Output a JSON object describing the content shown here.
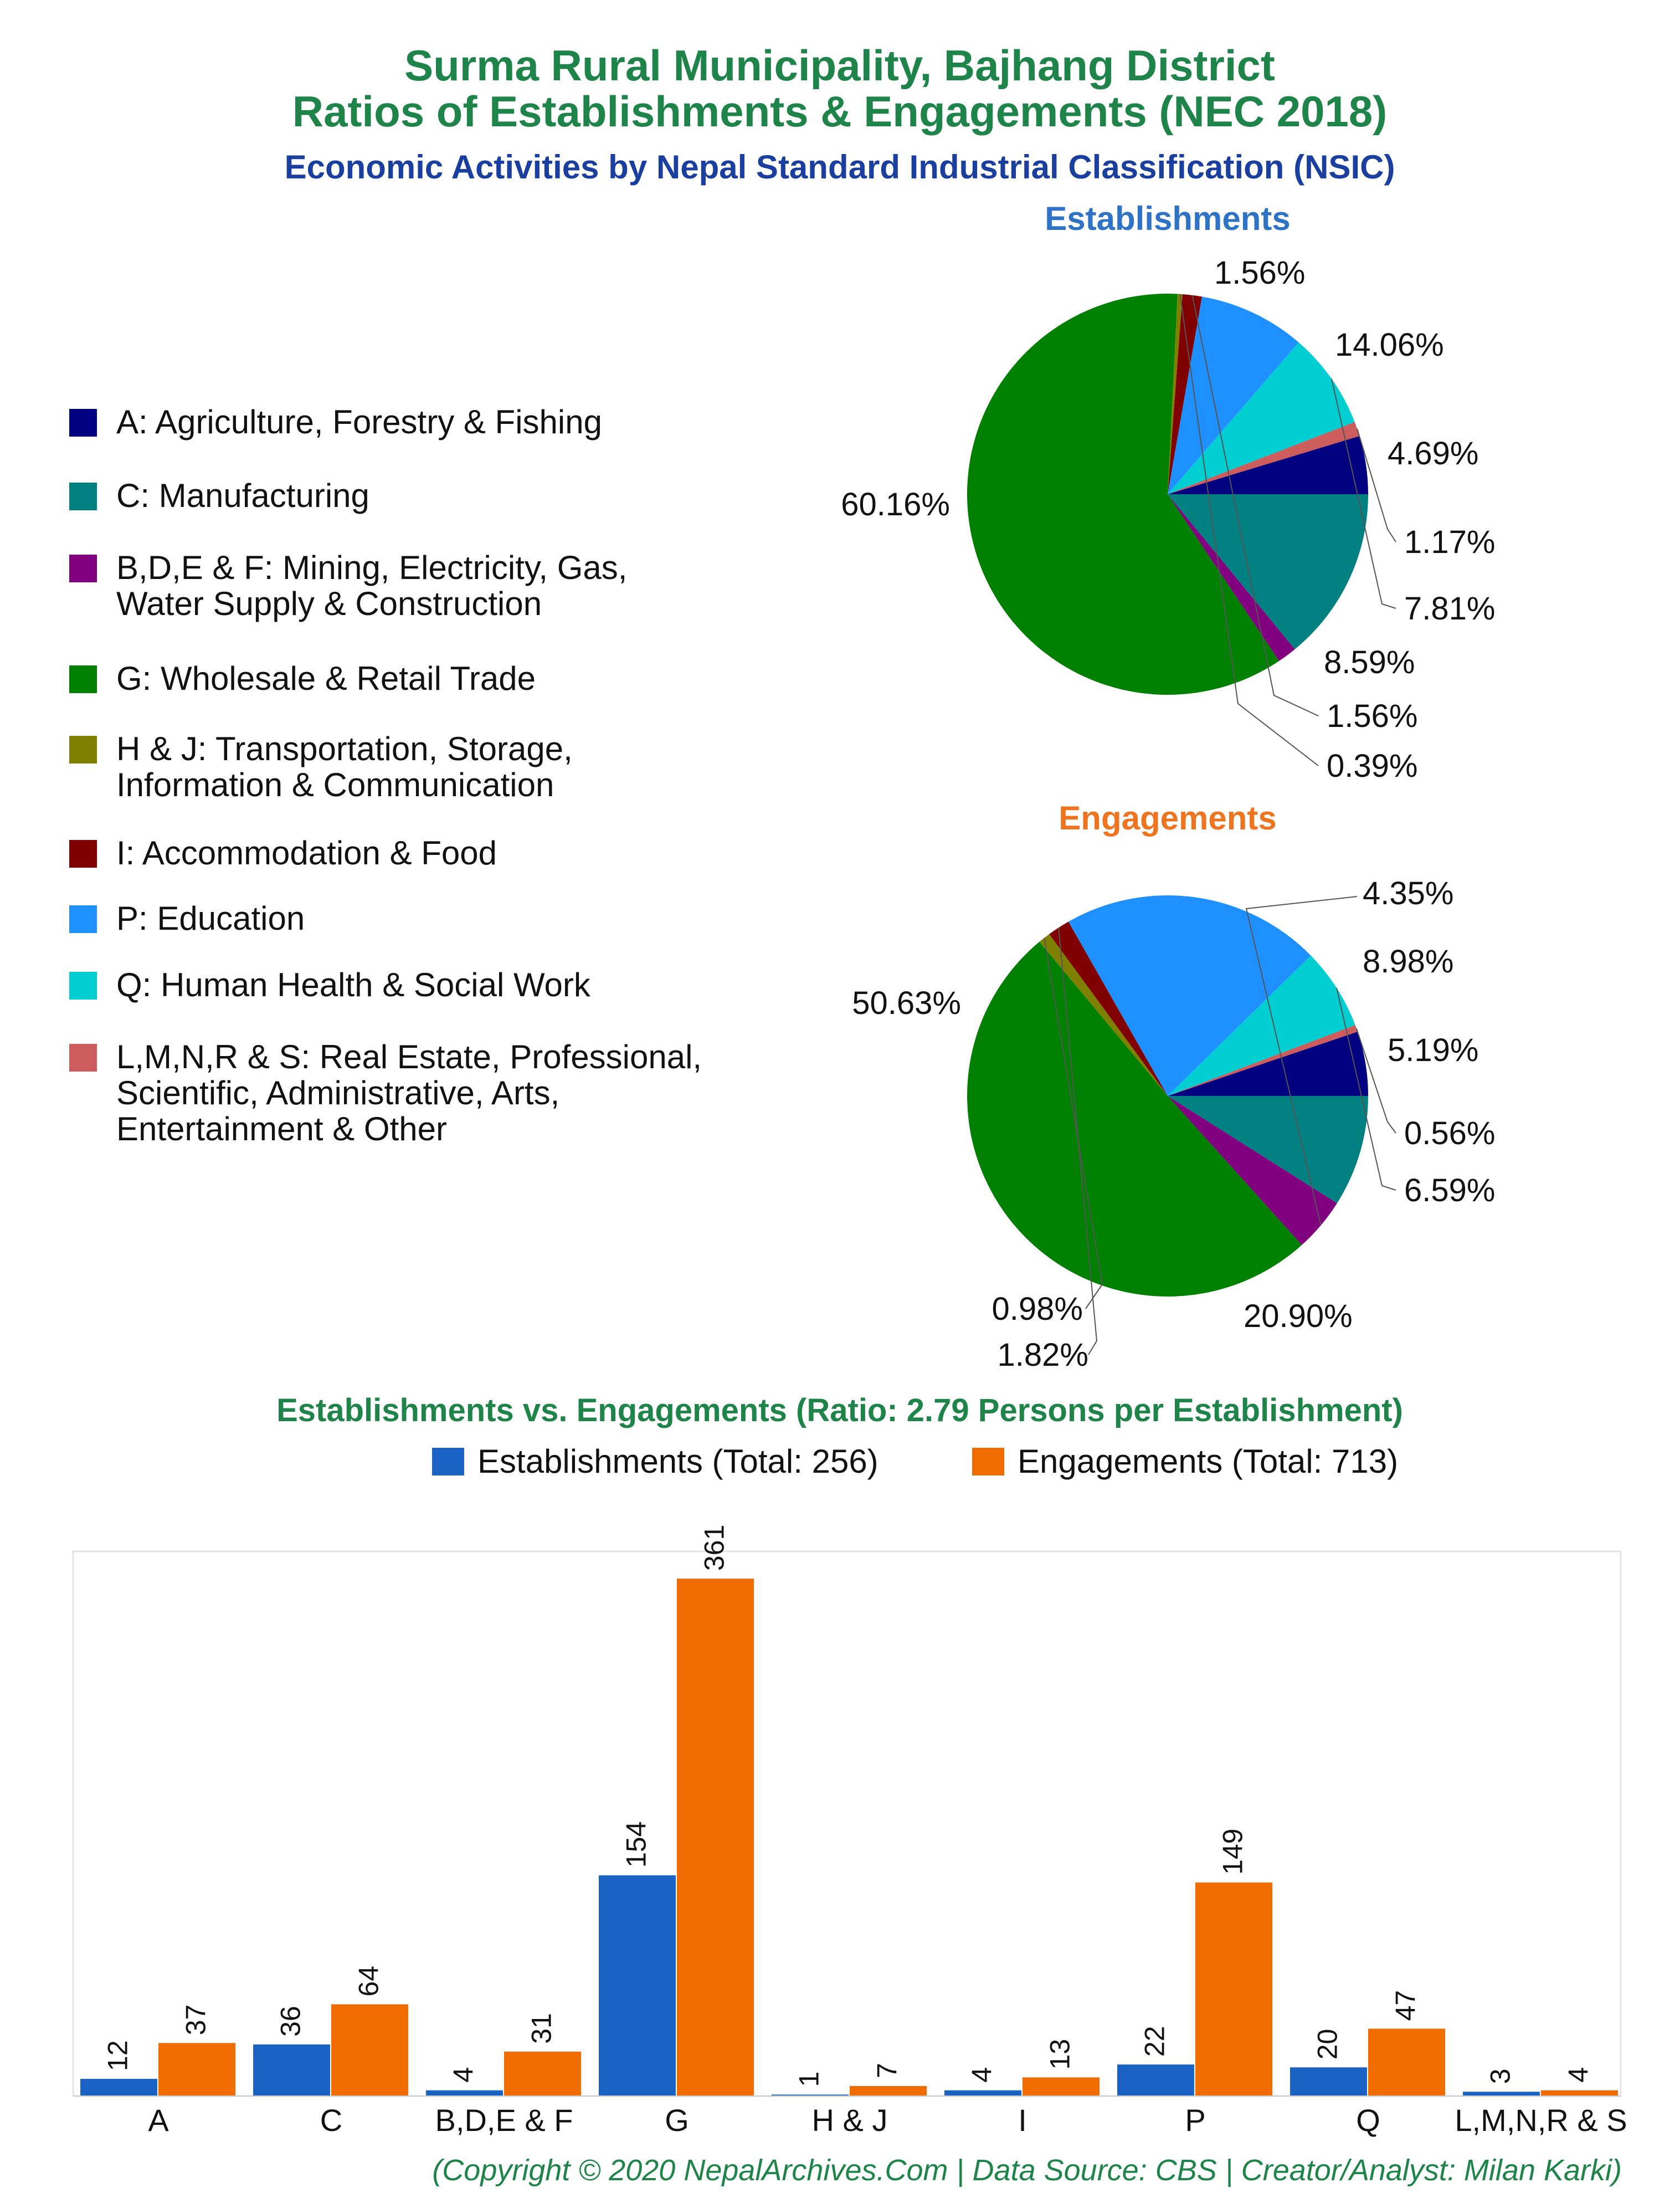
{
  "header": {
    "title_line1": "Surma Rural Municipality, Bajhang District",
    "title_line2": "Ratios of Establishments & Engagements (NEC 2018)",
    "subtitle": "Economic Activities by Nepal Standard Industrial Classification (NSIC)"
  },
  "legend": [
    {
      "lines": [
        "A: Agriculture, Forestry & Fishing"
      ],
      "color": "#000080"
    },
    {
      "lines": [
        "C: Manufacturing"
      ],
      "color": "#008080"
    },
    {
      "lines": [
        "B,D,E & F: Mining, Electricity, Gas,",
        "Water Supply & Construction"
      ],
      "color": "#800080"
    },
    {
      "lines": [
        "G: Wholesale & Retail Trade"
      ],
      "color": "#008000"
    },
    {
      "lines": [
        "H & J: Transportation, Storage,",
        "Information & Communication"
      ],
      "color": "#808000"
    },
    {
      "lines": [
        "I: Accommodation & Food"
      ],
      "color": "#800000"
    },
    {
      "lines": [
        "P: Education"
      ],
      "color": "#1e90ff"
    },
    {
      "lines": [
        "Q: Human Health & Social Work"
      ],
      "color": "#00ced1"
    },
    {
      "lines": [
        "L,M,N,R & S: Real Estate, Professional,",
        "Scientific, Administrative, Arts,",
        "Entertainment & Other"
      ],
      "color": "#cd5c5c"
    }
  ],
  "chart_data": [
    {
      "type": "pie",
      "title": "Establishments",
      "slices": [
        {
          "category": "A",
          "value": 4.69,
          "label": "4.69%",
          "color": "#000080"
        },
        {
          "category": "L,M,N,R & S",
          "value": 1.17,
          "label": "1.17%",
          "color": "#cd5c5c"
        },
        {
          "category": "Q",
          "value": 7.81,
          "label": "7.81%",
          "color": "#00ced1"
        },
        {
          "category": "P",
          "value": 8.59,
          "label": "8.59%",
          "color": "#1e90ff"
        },
        {
          "category": "I",
          "value": 1.56,
          "label": "1.56%",
          "color": "#800000"
        },
        {
          "category": "H & J",
          "value": 0.39,
          "label": "0.39%",
          "color": "#808000"
        },
        {
          "category": "G",
          "value": 60.16,
          "label": "60.16%",
          "color": "#008000"
        },
        {
          "category": "B,D,E & F",
          "value": 1.56,
          "label": "1.56%",
          "color": "#800080"
        },
        {
          "category": "C",
          "value": 14.06,
          "label": "14.06%",
          "color": "#008080"
        }
      ]
    },
    {
      "type": "pie",
      "title": "Engagements",
      "slices": [
        {
          "category": "A",
          "value": 5.19,
          "label": "5.19%",
          "color": "#000080"
        },
        {
          "category": "L,M,N,R & S",
          "value": 0.56,
          "label": "0.56%",
          "color": "#cd5c5c"
        },
        {
          "category": "Q",
          "value": 6.59,
          "label": "6.59%",
          "color": "#00ced1"
        },
        {
          "category": "P",
          "value": 20.9,
          "label": "20.90%",
          "color": "#1e90ff"
        },
        {
          "category": "I",
          "value": 1.82,
          "label": "1.82%",
          "color": "#800000"
        },
        {
          "category": "H & J",
          "value": 0.98,
          "label": "0.98%",
          "color": "#808000"
        },
        {
          "category": "G",
          "value": 50.63,
          "label": "50.63%",
          "color": "#008000"
        },
        {
          "category": "B,D,E & F",
          "value": 4.35,
          "label": "4.35%",
          "color": "#800080"
        },
        {
          "category": "C",
          "value": 8.98,
          "label": "8.98%",
          "color": "#008080"
        }
      ]
    },
    {
      "type": "bar",
      "title": "Establishments vs. Engagements (Ratio: 2.79 Persons per Establishment)",
      "categories": [
        "A",
        "C",
        "B,D,E & F",
        "G",
        "H & J",
        "I",
        "P",
        "Q",
        "L,M,N,R & S"
      ],
      "series": [
        {
          "name": "Establishments (Total: 256)",
          "values": [
            12,
            36,
            4,
            154,
            1,
            4,
            22,
            20,
            3
          ],
          "color": "#1a63c4"
        },
        {
          "name": "Engagements (Total: 713)",
          "values": [
            37,
            64,
            31,
            361,
            7,
            13,
            149,
            47,
            4
          ],
          "color": "#f06c00"
        }
      ],
      "ylim": [
        0,
        380
      ],
      "grid": false,
      "legend_position": "top"
    }
  ],
  "footer": {
    "text": "(Copyright © 2020 NepalArchives.Com | Data Source: CBS | Creator/Analyst: Milan Karki)"
  }
}
